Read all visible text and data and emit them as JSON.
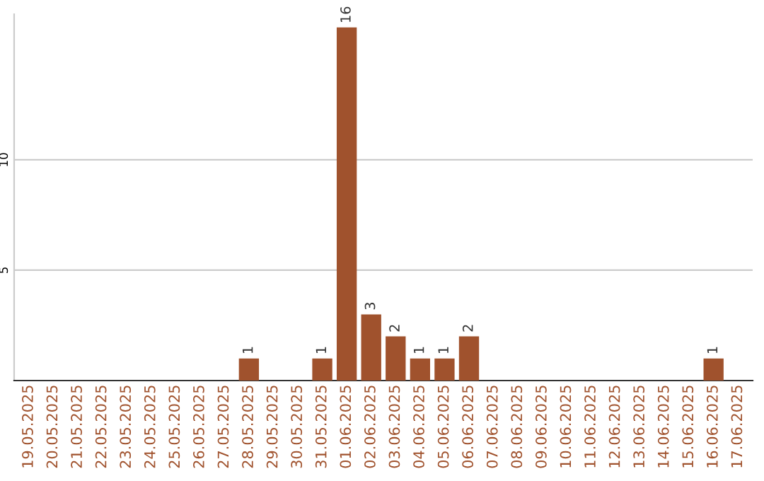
{
  "chart_data": {
    "type": "bar",
    "categories": [
      "19.05.2025",
      "20.05.2025",
      "21.05.2025",
      "22.05.2025",
      "23.05.2025",
      "24.05.2025",
      "25.05.2025",
      "26.05.2025",
      "27.05.2025",
      "28.05.2025",
      "29.05.2025",
      "30.05.2025",
      "31.05.2025",
      "01.06.2025",
      "02.06.2025",
      "03.06.2025",
      "04.06.2025",
      "05.06.2025",
      "06.06.2025",
      "07.06.2025",
      "08.06.2025",
      "09.06.2025",
      "10.06.2025",
      "11.06.2025",
      "12.06.2025",
      "13.06.2025",
      "14.06.2025",
      "15.06.2025",
      "16.06.2025",
      "17.06.2025"
    ],
    "values": [
      0,
      0,
      0,
      0,
      0,
      0,
      0,
      0,
      0,
      1,
      0,
      0,
      1,
      16,
      3,
      2,
      1,
      1,
      2,
      0,
      0,
      0,
      0,
      0,
      0,
      0,
      0,
      0,
      1,
      0
    ],
    "value_labels": [
      null,
      null,
      null,
      null,
      null,
      null,
      null,
      null,
      null,
      "1",
      null,
      null,
      "1",
      "16",
      "3",
      "2",
      "1",
      "1",
      "2",
      null,
      null,
      null,
      null,
      null,
      null,
      null,
      null,
      null,
      "1",
      null
    ],
    "color": "#a0522d",
    "ylim": [
      0,
      16.6
    ],
    "yticks": [
      5,
      10
    ],
    "grid": "y",
    "legend": false
  }
}
